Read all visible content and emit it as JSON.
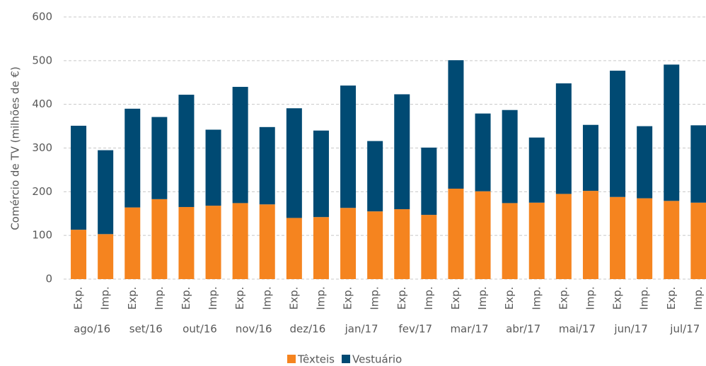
{
  "chart_data": {
    "type": "stacked_bar",
    "y_label": "Comércio de TV (milhões de €)",
    "categories": [
      "Exp.",
      "Imp.",
      "Exp.",
      "Imp.",
      "Exp.",
      "Imp.",
      "Exp.",
      "Imp.",
      "Exp.",
      "Imp.",
      "Exp.",
      "Imp.",
      "Exp.",
      "Imp.",
      "Exp.",
      "Imp.",
      "Exp.",
      "Imp.",
      "Exp.",
      "Imp.",
      "Exp.",
      "Imp.",
      "Exp.",
      "Imp."
    ],
    "groups": [
      "ago/16",
      "set/16",
      "out/16",
      "nov/16",
      "dez/16",
      "jan/17",
      "fev/17",
      "mar/17",
      "abr/17",
      "mai/17",
      "jun/17",
      "jul/17"
    ],
    "series": [
      {
        "name": "Têxteis",
        "color": "#f5841f",
        "values": [
          113,
          103,
          164,
          183,
          165,
          168,
          174,
          171,
          140,
          142,
          163,
          155,
          160,
          147,
          207,
          201,
          174,
          175,
          195,
          202,
          188,
          185,
          179,
          175
        ]
      },
      {
        "name": "Vestuário",
        "color": "#004a73",
        "values": [
          238,
          192,
          226,
          188,
          257,
          174,
          266,
          177,
          251,
          198,
          280,
          161,
          263,
          154,
          294,
          178,
          213,
          149,
          253,
          151,
          289,
          165,
          312,
          177
        ]
      }
    ],
    "ylim": [
      0,
      600
    ],
    "yticks": [
      0,
      100,
      200,
      300,
      400,
      500,
      600
    ],
    "grid": true,
    "legend": "bottom"
  }
}
